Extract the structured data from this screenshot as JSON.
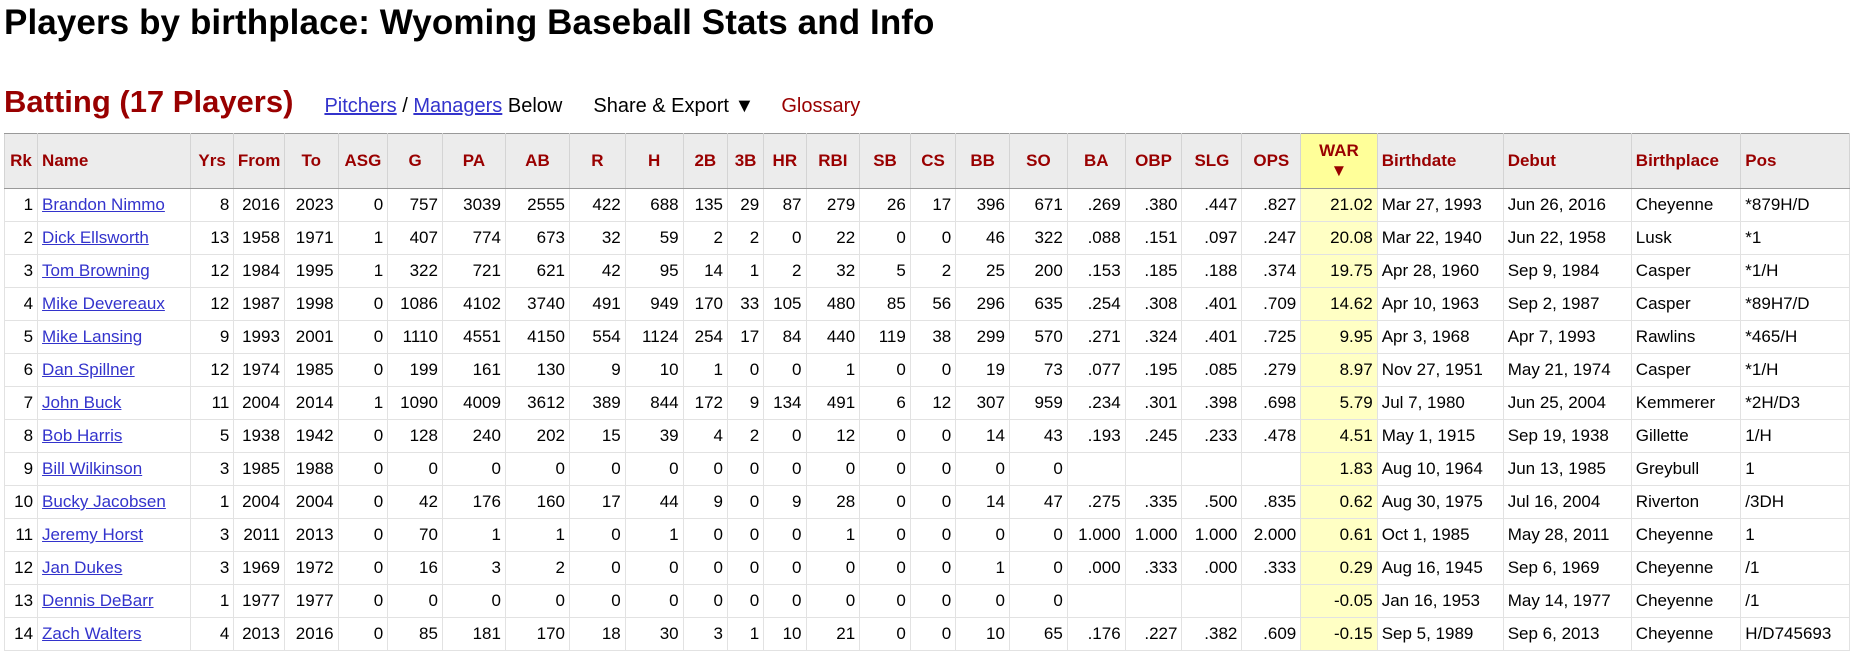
{
  "page": {
    "title": "Players by birthplace: Wyoming Baseball Stats and Info"
  },
  "section": {
    "title": "Batting (17 Players)",
    "pitchers_link": "Pitchers",
    "separator": "/",
    "managers_link": "Managers",
    "below_text": "Below",
    "share_export": "Share & Export ▼",
    "glossary": "Glossary"
  },
  "colors": {
    "header_text": "#990000",
    "link": "#3333cc",
    "war_highlight": "#ffff99"
  },
  "table": {
    "columns": [
      "Rk",
      "Name",
      "Yrs",
      "From",
      "To",
      "ASG",
      "G",
      "PA",
      "AB",
      "R",
      "H",
      "2B",
      "3B",
      "HR",
      "RBI",
      "SB",
      "CS",
      "BB",
      "SO",
      "BA",
      "OBP",
      "SLG",
      "OPS",
      "WAR",
      "Birthdate",
      "Debut",
      "Birthplace",
      "Pos"
    ],
    "war_sort_indicator": "▼",
    "rows": [
      [
        "1",
        "Brandon Nimmo",
        "8",
        "2016",
        "2023",
        "0",
        "757",
        "3039",
        "2555",
        "422",
        "688",
        "135",
        "29",
        "87",
        "279",
        "26",
        "17",
        "396",
        "671",
        ".269",
        ".380",
        ".447",
        ".827",
        "21.02",
        "Mar 27, 1993",
        "Jun 26, 2016",
        "Cheyenne",
        "*879H/D"
      ],
      [
        "2",
        "Dick Ellsworth",
        "13",
        "1958",
        "1971",
        "1",
        "407",
        "774",
        "673",
        "32",
        "59",
        "2",
        "2",
        "0",
        "22",
        "0",
        "0",
        "46",
        "322",
        ".088",
        ".151",
        ".097",
        ".247",
        "20.08",
        "Mar 22, 1940",
        "Jun 22, 1958",
        "Lusk",
        "*1"
      ],
      [
        "3",
        "Tom Browning",
        "12",
        "1984",
        "1995",
        "1",
        "322",
        "721",
        "621",
        "42",
        "95",
        "14",
        "1",
        "2",
        "32",
        "5",
        "2",
        "25",
        "200",
        ".153",
        ".185",
        ".188",
        ".374",
        "19.75",
        "Apr 28, 1960",
        "Sep 9, 1984",
        "Casper",
        "*1/H"
      ],
      [
        "4",
        "Mike Devereaux",
        "12",
        "1987",
        "1998",
        "0",
        "1086",
        "4102",
        "3740",
        "491",
        "949",
        "170",
        "33",
        "105",
        "480",
        "85",
        "56",
        "296",
        "635",
        ".254",
        ".308",
        ".401",
        ".709",
        "14.62",
        "Apr 10, 1963",
        "Sep 2, 1987",
        "Casper",
        "*89H7/D"
      ],
      [
        "5",
        "Mike Lansing",
        "9",
        "1993",
        "2001",
        "0",
        "1110",
        "4551",
        "4150",
        "554",
        "1124",
        "254",
        "17",
        "84",
        "440",
        "119",
        "38",
        "299",
        "570",
        ".271",
        ".324",
        ".401",
        ".725",
        "9.95",
        "Apr 3, 1968",
        "Apr 7, 1993",
        "Rawlins",
        "*465/H"
      ],
      [
        "6",
        "Dan Spillner",
        "12",
        "1974",
        "1985",
        "0",
        "199",
        "161",
        "130",
        "9",
        "10",
        "1",
        "0",
        "0",
        "1",
        "0",
        "0",
        "19",
        "73",
        ".077",
        ".195",
        ".085",
        ".279",
        "8.97",
        "Nov 27, 1951",
        "May 21, 1974",
        "Casper",
        "*1/H"
      ],
      [
        "7",
        "John Buck",
        "11",
        "2004",
        "2014",
        "1",
        "1090",
        "4009",
        "3612",
        "389",
        "844",
        "172",
        "9",
        "134",
        "491",
        "6",
        "12",
        "307",
        "959",
        ".234",
        ".301",
        ".398",
        ".698",
        "5.79",
        "Jul 7, 1980",
        "Jun 25, 2004",
        "Kemmerer",
        "*2H/D3"
      ],
      [
        "8",
        "Bob Harris",
        "5",
        "1938",
        "1942",
        "0",
        "128",
        "240",
        "202",
        "15",
        "39",
        "4",
        "2",
        "0",
        "12",
        "0",
        "0",
        "14",
        "43",
        ".193",
        ".245",
        ".233",
        ".478",
        "4.51",
        "May 1, 1915",
        "Sep 19, 1938",
        "Gillette",
        "1/H"
      ],
      [
        "9",
        "Bill Wilkinson",
        "3",
        "1985",
        "1988",
        "0",
        "0",
        "0",
        "0",
        "0",
        "0",
        "0",
        "0",
        "0",
        "0",
        "0",
        "0",
        "0",
        "0",
        "",
        "",
        "",
        "",
        "1.83",
        "Aug 10, 1964",
        "Jun 13, 1985",
        "Greybull",
        "1"
      ],
      [
        "10",
        "Bucky Jacobsen",
        "1",
        "2004",
        "2004",
        "0",
        "42",
        "176",
        "160",
        "17",
        "44",
        "9",
        "0",
        "9",
        "28",
        "0",
        "0",
        "14",
        "47",
        ".275",
        ".335",
        ".500",
        ".835",
        "0.62",
        "Aug 30, 1975",
        "Jul 16, 2004",
        "Riverton",
        "/3DH"
      ],
      [
        "11",
        "Jeremy Horst",
        "3",
        "2011",
        "2013",
        "0",
        "70",
        "1",
        "1",
        "0",
        "1",
        "0",
        "0",
        "0",
        "1",
        "0",
        "0",
        "0",
        "0",
        "1.000",
        "1.000",
        "1.000",
        "2.000",
        "0.61",
        "Oct 1, 1985",
        "May 28, 2011",
        "Cheyenne",
        "1"
      ],
      [
        "12",
        "Jan Dukes",
        "3",
        "1969",
        "1972",
        "0",
        "16",
        "3",
        "2",
        "0",
        "0",
        "0",
        "0",
        "0",
        "0",
        "0",
        "0",
        "1",
        "0",
        ".000",
        ".333",
        ".000",
        ".333",
        "0.29",
        "Aug 16, 1945",
        "Sep 6, 1969",
        "Cheyenne",
        "/1"
      ],
      [
        "13",
        "Dennis DeBarr",
        "1",
        "1977",
        "1977",
        "0",
        "0",
        "0",
        "0",
        "0",
        "0",
        "0",
        "0",
        "0",
        "0",
        "0",
        "0",
        "0",
        "0",
        "",
        "",
        "",
        "",
        "-0.05",
        "Jan 16, 1953",
        "May 14, 1977",
        "Cheyenne",
        "/1"
      ],
      [
        "14",
        "Zach Walters",
        "4",
        "2013",
        "2016",
        "0",
        "85",
        "181",
        "170",
        "18",
        "30",
        "3",
        "1",
        "10",
        "21",
        "0",
        "0",
        "10",
        "65",
        ".176",
        ".227",
        ".382",
        ".609",
        "-0.15",
        "Sep 5, 1989",
        "Sep 6, 2013",
        "Cheyenne",
        "H/D745693"
      ]
    ]
  }
}
